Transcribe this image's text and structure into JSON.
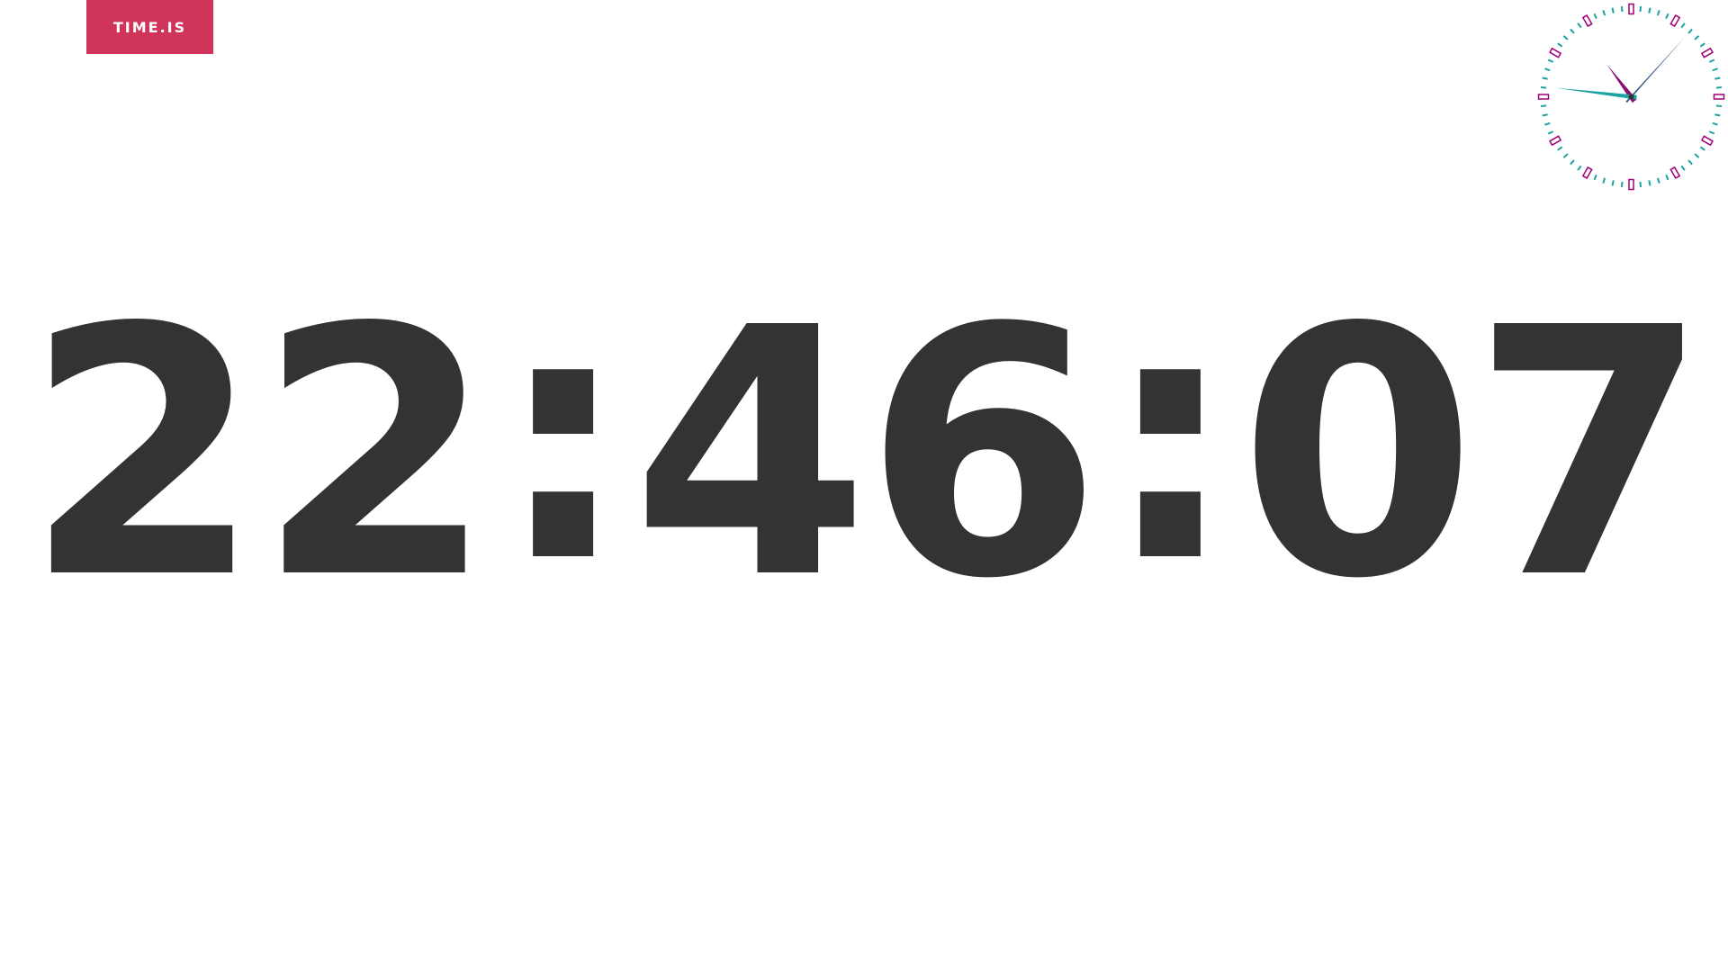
{
  "logo": {
    "label": "TIME.IS"
  },
  "clock": {
    "hours": "22",
    "minutes": "46",
    "seconds": "07",
    "separator": ":",
    "digit_color": "#333333"
  },
  "analog_clock": {
    "hour": 22,
    "minute": 46,
    "second": 7,
    "hour_mark_color": "#a0007a",
    "minute_mark_color": "#1aa3a3"
  },
  "colors": {
    "brand": "#d1345b",
    "background": "#ffffff"
  }
}
